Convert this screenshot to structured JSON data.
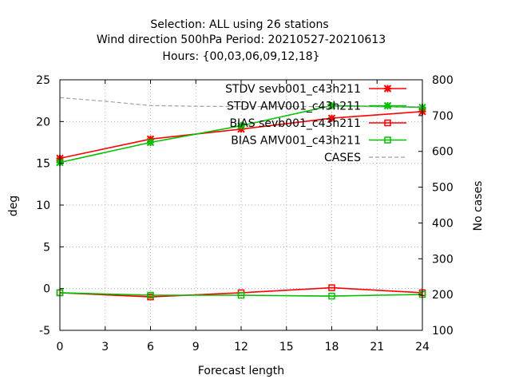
{
  "chart_data": {
    "type": "line",
    "title_lines": [
      "Selection: ALL using     26 stations",
      "Wind direction 500hPa   Period: 20210527-20210613",
      "Hours: {00,03,06,09,12,18}"
    ],
    "xlabel": "Forecast length",
    "ylabel": "deg",
    "y2label": "No cases",
    "xlim": [
      0,
      24
    ],
    "ylim": [
      -5,
      25
    ],
    "y2lim": [
      100,
      800
    ],
    "xticks": [
      0,
      3,
      6,
      9,
      12,
      15,
      18,
      21,
      24
    ],
    "yticks": [
      -5,
      0,
      5,
      10,
      15,
      20,
      25
    ],
    "y2ticks": [
      100,
      200,
      300,
      400,
      500,
      600,
      700,
      800
    ],
    "grid": true,
    "legend_position": "top-right",
    "x": [
      0,
      6,
      12,
      18,
      24
    ],
    "series": [
      {
        "name": "STDV sevb001_c43h211",
        "axis": "y",
        "color": "#ff0000",
        "marker": "x",
        "values": [
          15.6,
          17.9,
          19.1,
          20.4,
          21.2
        ]
      },
      {
        "name": "STDV AMV001_c43h211",
        "axis": "y",
        "color": "#00c000",
        "marker": "x",
        "values": [
          15.1,
          17.5,
          19.5,
          21.9,
          21.7
        ]
      },
      {
        "name": "BIAS sevb001_c43h211",
        "axis": "y",
        "color": "#ff0000",
        "marker": "square",
        "values": [
          -0.5,
          -1.0,
          -0.5,
          0.1,
          -0.5
        ]
      },
      {
        "name": "BIAS AMV001_c43h211",
        "axis": "y",
        "color": "#00c000",
        "marker": "square",
        "values": [
          -0.5,
          -0.8,
          -0.8,
          -0.9,
          -0.7
        ]
      },
      {
        "name": "CASES",
        "axis": "y2",
        "color": "#a0a0a0",
        "marker": "none",
        "dashed": true,
        "x": [
          0,
          3,
          6,
          9,
          12,
          24
        ],
        "values": [
          750,
          740,
          728,
          726,
          725,
          725
        ]
      }
    ]
  }
}
